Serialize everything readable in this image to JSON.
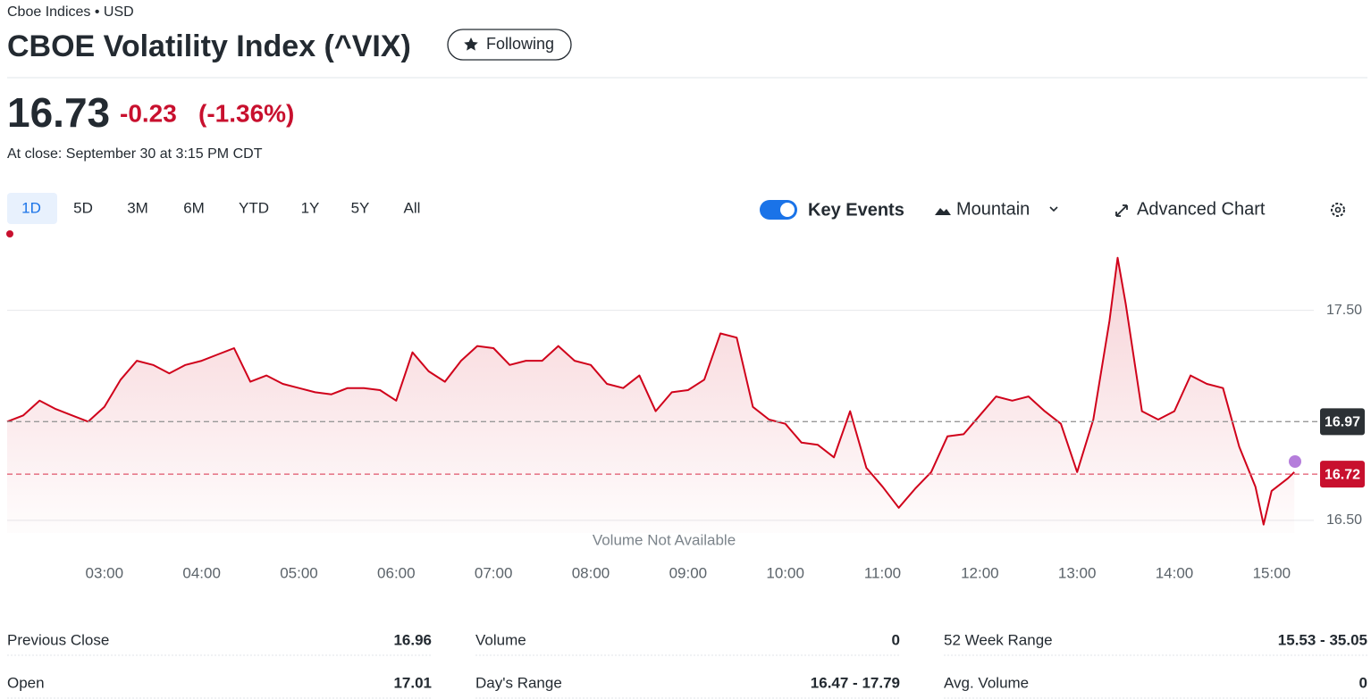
{
  "header": {
    "breadcrumb": "Cboe Indices • USD",
    "title": "CBOE Volatility Index (^VIX)",
    "follow_button": "Following"
  },
  "quote": {
    "price": "16.73",
    "change": "-0.23",
    "change_percent": "(-1.36%)",
    "close_time": "At close: September 30 at 3:15 PM CDT"
  },
  "toolbar": {
    "ranges": [
      "1D",
      "5D",
      "3M",
      "6M",
      "YTD",
      "1Y",
      "5Y",
      "All"
    ],
    "key_events": "Key Events",
    "chart_style": "Mountain",
    "advanced_chart": "Advanced Chart"
  },
  "chart_data": {
    "type": "line",
    "color": "#d0021b",
    "x": [
      "02:00",
      "02:10",
      "02:20",
      "02:30",
      "02:40",
      "02:50",
      "03:00",
      "03:10",
      "03:20",
      "03:30",
      "03:40",
      "03:50",
      "04:00",
      "04:10",
      "04:20",
      "04:30",
      "04:40",
      "04:50",
      "05:00",
      "05:10",
      "05:20",
      "05:30",
      "05:40",
      "05:50",
      "06:00",
      "06:10",
      "06:20",
      "06:30",
      "06:40",
      "06:50",
      "07:00",
      "07:10",
      "07:20",
      "07:30",
      "07:40",
      "07:50",
      "08:00",
      "08:10",
      "08:20",
      "08:30",
      "08:40",
      "08:50",
      "09:00",
      "09:10",
      "09:20",
      "09:30",
      "09:40",
      "09:50",
      "10:00",
      "10:10",
      "10:20",
      "10:30",
      "10:40",
      "10:50",
      "11:00",
      "11:10",
      "11:20",
      "11:30",
      "11:40",
      "11:50",
      "12:00",
      "12:10",
      "12:20",
      "12:30",
      "12:40",
      "12:50",
      "13:00",
      "13:10",
      "13:20",
      "13:25",
      "13:30",
      "13:40",
      "13:50",
      "14:00",
      "14:10",
      "14:20",
      "14:30",
      "14:40",
      "14:50",
      "14:55",
      "15:00",
      "15:10",
      "15:14"
    ],
    "values": [
      16.97,
      17.0,
      17.07,
      17.03,
      17.0,
      16.97,
      17.04,
      17.17,
      17.26,
      17.24,
      17.2,
      17.24,
      17.26,
      17.29,
      17.32,
      17.16,
      17.19,
      17.15,
      17.13,
      17.11,
      17.1,
      17.13,
      17.13,
      17.12,
      17.07,
      17.3,
      17.21,
      17.16,
      17.26,
      17.33,
      17.32,
      17.24,
      17.26,
      17.26,
      17.33,
      17.26,
      17.24,
      17.15,
      17.13,
      17.19,
      17.02,
      17.11,
      17.12,
      17.17,
      17.39,
      17.37,
      17.04,
      16.98,
      16.96,
      16.87,
      16.86,
      16.8,
      17.02,
      16.75,
      16.66,
      16.56,
      16.65,
      16.73,
      16.9,
      16.91,
      17.0,
      17.09,
      17.07,
      17.09,
      17.02,
      16.96,
      16.73,
      16.98,
      17.45,
      17.75,
      17.53,
      17.02,
      16.98,
      17.02,
      17.19,
      17.15,
      17.13,
      16.85,
      16.66,
      16.48,
      16.64,
      16.7,
      16.73
    ],
    "xlim": [
      "02:00",
      "15:26"
    ],
    "xticks": [
      "03:00",
      "04:00",
      "05:00",
      "06:00",
      "07:00",
      "08:00",
      "09:00",
      "10:00",
      "11:00",
      "12:00",
      "13:00",
      "14:00",
      "15:00"
    ],
    "ylim": [
      16.44,
      17.83
    ],
    "yticks": [
      {
        "value": 17.5,
        "label": "17.50"
      },
      {
        "value": 16.5,
        "label": "16.50"
      }
    ],
    "grid": true,
    "reference_lines": [
      {
        "value": 16.97,
        "color": "#2c3135",
        "line_color": "#999999"
      },
      {
        "value": 16.72,
        "color": "#c8102e",
        "line_color": "#e0566b"
      }
    ],
    "note": "Volume Not Available"
  },
  "stats": [
    {
      "label": "Previous Close",
      "value": "16.96"
    },
    {
      "label": "Volume",
      "value": "0"
    },
    {
      "label": "52 Week Range",
      "value": "15.53 - 35.05"
    },
    {
      "label": "Open",
      "value": "17.01"
    },
    {
      "label": "Day's Range",
      "value": "16.47 - 17.79"
    },
    {
      "label": "Avg. Volume",
      "value": "0"
    }
  ]
}
